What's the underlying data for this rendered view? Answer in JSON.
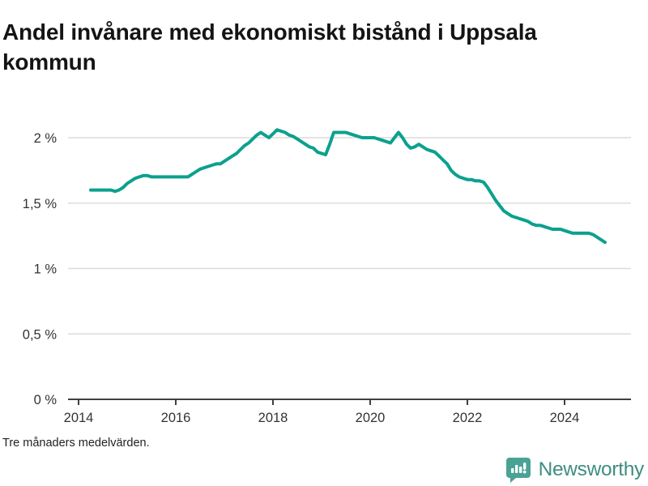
{
  "page": {
    "title": "Andel invånare med ekonomiskt bistånd i Uppsala kommun",
    "footnote": "Tre månaders medelvärden.",
    "brand": {
      "name": "Newsworthy",
      "icon": "bar-chart-speech-bubble-icon"
    }
  },
  "colors": {
    "line": "#0ba18e",
    "grid": "#dcdcdc",
    "axis": "#404040",
    "tick_text": "#333333",
    "title_text": "#141414",
    "brand_mark": "#4aa295",
    "brand_text": "#3e8d81"
  },
  "chart_data": {
    "type": "line",
    "title": "Andel invånare med ekonomiskt bistånd i Uppsala kommun",
    "subtitle": "Tre månaders medelvärden.",
    "unit": "%",
    "xlabel": "",
    "ylabel": "",
    "ylim": [
      0,
      2.1
    ],
    "xlim_years": [
      2013.8,
      2025.4
    ],
    "grid": "horizontal",
    "legend": "none",
    "yticks": [
      {
        "value": 0,
        "label": "0 %"
      },
      {
        "value": 0.5,
        "label": "0,5 %"
      },
      {
        "value": 1,
        "label": "1 %"
      },
      {
        "value": 1.5,
        "label": "1,5 %"
      },
      {
        "value": 2,
        "label": "2 %"
      }
    ],
    "xticks": [
      {
        "year": 2014,
        "label": "2014"
      },
      {
        "year": 2016,
        "label": "2016"
      },
      {
        "year": 2018,
        "label": "2018"
      },
      {
        "year": 2020,
        "label": "2020"
      },
      {
        "year": 2022,
        "label": "2022"
      },
      {
        "year": 2024,
        "label": "2024"
      }
    ],
    "series": [
      {
        "name": "Andel invånare med ekonomiskt bistånd i Uppsala kommun",
        "points": [
          [
            "2014-04",
            1.6
          ],
          [
            "2014-05",
            1.6
          ],
          [
            "2014-06",
            1.6
          ],
          [
            "2014-07",
            1.6
          ],
          [
            "2014-08",
            1.6
          ],
          [
            "2014-09",
            1.6
          ],
          [
            "2014-10",
            1.59
          ],
          [
            "2014-11",
            1.6
          ],
          [
            "2014-12",
            1.62
          ],
          [
            "2015-01",
            1.65
          ],
          [
            "2015-02",
            1.67
          ],
          [
            "2015-03",
            1.69
          ],
          [
            "2015-04",
            1.7
          ],
          [
            "2015-05",
            1.71
          ],
          [
            "2015-06",
            1.71
          ],
          [
            "2015-07",
            1.7
          ],
          [
            "2015-08",
            1.7
          ],
          [
            "2015-09",
            1.7
          ],
          [
            "2015-10",
            1.7
          ],
          [
            "2015-11",
            1.7
          ],
          [
            "2015-12",
            1.7
          ],
          [
            "2016-01",
            1.7
          ],
          [
            "2016-02",
            1.7
          ],
          [
            "2016-03",
            1.7
          ],
          [
            "2016-04",
            1.7
          ],
          [
            "2016-05",
            1.72
          ],
          [
            "2016-06",
            1.74
          ],
          [
            "2016-07",
            1.76
          ],
          [
            "2016-08",
            1.77
          ],
          [
            "2016-09",
            1.78
          ],
          [
            "2016-10",
            1.79
          ],
          [
            "2016-11",
            1.8
          ],
          [
            "2016-12",
            1.8
          ],
          [
            "2017-01",
            1.82
          ],
          [
            "2017-02",
            1.84
          ],
          [
            "2017-03",
            1.86
          ],
          [
            "2017-04",
            1.88
          ],
          [
            "2017-05",
            1.91
          ],
          [
            "2017-06",
            1.94
          ],
          [
            "2017-07",
            1.96
          ],
          [
            "2017-08",
            1.99
          ],
          [
            "2017-09",
            2.02
          ],
          [
            "2017-10",
            2.04
          ],
          [
            "2017-11",
            2.02
          ],
          [
            "2017-12",
            2.0
          ],
          [
            "2018-01",
            2.03
          ],
          [
            "2018-02",
            2.06
          ],
          [
            "2018-03",
            2.05
          ],
          [
            "2018-04",
            2.04
          ],
          [
            "2018-05",
            2.02
          ],
          [
            "2018-06",
            2.01
          ],
          [
            "2018-07",
            1.99
          ],
          [
            "2018-08",
            1.97
          ],
          [
            "2018-09",
            1.95
          ],
          [
            "2018-10",
            1.93
          ],
          [
            "2018-11",
            1.92
          ],
          [
            "2018-12",
            1.89
          ],
          [
            "2019-01",
            1.88
          ],
          [
            "2019-02",
            1.87
          ],
          [
            "2019-03",
            1.95
          ],
          [
            "2019-04",
            2.04
          ],
          [
            "2019-05",
            2.04
          ],
          [
            "2019-06",
            2.04
          ],
          [
            "2019-07",
            2.04
          ],
          [
            "2019-08",
            2.03
          ],
          [
            "2019-09",
            2.02
          ],
          [
            "2019-10",
            2.01
          ],
          [
            "2019-11",
            2.0
          ],
          [
            "2019-12",
            2.0
          ],
          [
            "2020-01",
            2.0
          ],
          [
            "2020-02",
            2.0
          ],
          [
            "2020-03",
            1.99
          ],
          [
            "2020-04",
            1.98
          ],
          [
            "2020-05",
            1.97
          ],
          [
            "2020-06",
            1.96
          ],
          [
            "2020-07",
            2.0
          ],
          [
            "2020-08",
            2.04
          ],
          [
            "2020-09",
            2.0
          ],
          [
            "2020-10",
            1.95
          ],
          [
            "2020-11",
            1.92
          ],
          [
            "2020-12",
            1.93
          ],
          [
            "2021-01",
            1.95
          ],
          [
            "2021-02",
            1.93
          ],
          [
            "2021-03",
            1.91
          ],
          [
            "2021-04",
            1.9
          ],
          [
            "2021-05",
            1.89
          ],
          [
            "2021-06",
            1.86
          ],
          [
            "2021-07",
            1.83
          ],
          [
            "2021-08",
            1.8
          ],
          [
            "2021-09",
            1.75
          ],
          [
            "2021-10",
            1.72
          ],
          [
            "2021-11",
            1.7
          ],
          [
            "2021-12",
            1.69
          ],
          [
            "2022-01",
            1.68
          ],
          [
            "2022-02",
            1.68
          ],
          [
            "2022-03",
            1.67
          ],
          [
            "2022-04",
            1.67
          ],
          [
            "2022-05",
            1.66
          ],
          [
            "2022-06",
            1.62
          ],
          [
            "2022-07",
            1.57
          ],
          [
            "2022-08",
            1.52
          ],
          [
            "2022-09",
            1.48
          ],
          [
            "2022-10",
            1.44
          ],
          [
            "2022-11",
            1.42
          ],
          [
            "2022-12",
            1.4
          ],
          [
            "2023-01",
            1.39
          ],
          [
            "2023-02",
            1.38
          ],
          [
            "2023-03",
            1.37
          ],
          [
            "2023-04",
            1.36
          ],
          [
            "2023-05",
            1.34
          ],
          [
            "2023-06",
            1.33
          ],
          [
            "2023-07",
            1.33
          ],
          [
            "2023-08",
            1.32
          ],
          [
            "2023-09",
            1.31
          ],
          [
            "2023-10",
            1.3
          ],
          [
            "2023-11",
            1.3
          ],
          [
            "2023-12",
            1.3
          ],
          [
            "2024-01",
            1.29
          ],
          [
            "2024-02",
            1.28
          ],
          [
            "2024-03",
            1.27
          ],
          [
            "2024-04",
            1.27
          ],
          [
            "2024-05",
            1.27
          ],
          [
            "2024-06",
            1.27
          ],
          [
            "2024-07",
            1.27
          ],
          [
            "2024-08",
            1.26
          ],
          [
            "2024-09",
            1.24
          ],
          [
            "2024-10",
            1.22
          ],
          [
            "2024-11",
            1.2
          ]
        ]
      }
    ]
  }
}
